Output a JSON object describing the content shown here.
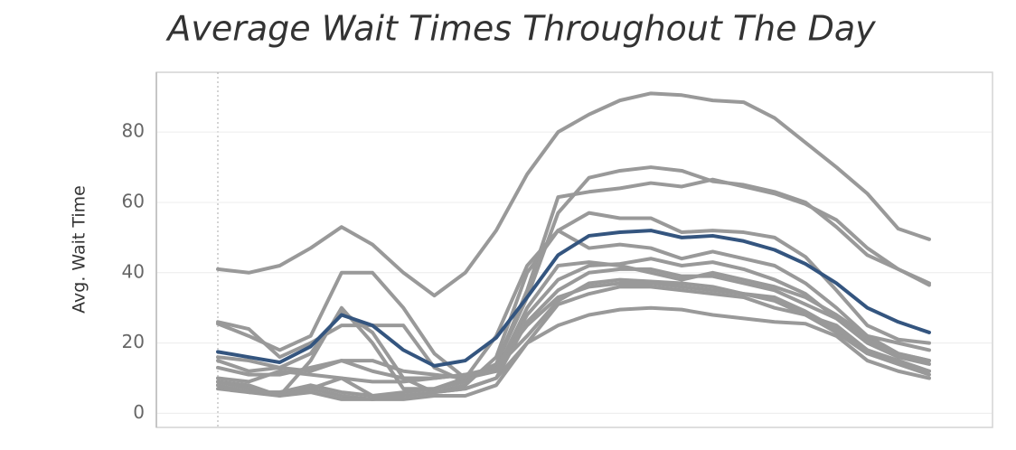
{
  "chart_data": {
    "type": "line",
    "title": "Average Wait Times Throughout The Day",
    "y_label": "Avg. Wait Time",
    "categories": [
      null,
      null,
      null,
      null,
      null,
      null,
      null,
      null,
      null,
      null,
      null,
      null,
      null,
      null,
      null,
      null,
      null,
      null,
      null,
      null,
      null,
      null,
      null,
      null
    ],
    "ylim": [
      -4,
      97
    ],
    "yticks": [
      0,
      20,
      40,
      60,
      80
    ],
    "grid": true,
    "series": [
      {
        "color": "#999999",
        "values": [
          41,
          40,
          42,
          47,
          53,
          48,
          40,
          33.5,
          40,
          52,
          68,
          80,
          85,
          89,
          91,
          90.5,
          89,
          88.5,
          84,
          77,
          70,
          62.5,
          52.5,
          49.5
        ]
      },
      {
        "color": "#999999",
        "values": [
          25.5,
          22,
          18,
          22,
          40,
          40,
          30,
          17,
          10,
          14,
          33,
          57,
          67,
          69,
          70,
          69,
          66,
          65,
          63,
          60,
          53,
          45,
          41,
          37
        ]
      },
      {
        "color": "#999999",
        "values": [
          26,
          24,
          16,
          20,
          25,
          25,
          25,
          13,
          9,
          14,
          35,
          61.5,
          63,
          64,
          65.5,
          64.5,
          66.5,
          64.5,
          62.5,
          59.5,
          55,
          47,
          41,
          36.5
        ]
      },
      {
        "color": "#999999",
        "values": [
          16,
          15,
          13,
          17,
          29,
          23,
          10,
          6,
          8,
          16,
          40,
          52,
          57,
          55.5,
          55.5,
          51.5,
          52,
          51.5,
          50,
          44.5,
          35,
          25,
          21,
          20
        ]
      },
      {
        "color": "#999999",
        "values": [
          9,
          8,
          5,
          15,
          30,
          20,
          7,
          7,
          10,
          22,
          42,
          52,
          47,
          48,
          47,
          44,
          46,
          44,
          42,
          37,
          30,
          22,
          17,
          15
        ]
      },
      {
        "color": "#999999",
        "values": [
          13,
          11,
          11,
          13,
          15,
          15,
          12,
          11,
          10,
          12,
          28,
          38,
          42,
          42.5,
          44,
          42,
          43,
          41,
          38,
          34,
          27,
          21,
          17,
          15
        ]
      },
      {
        "color": "#999999",
        "values": [
          8,
          6,
          6,
          7,
          5,
          4,
          5,
          6,
          7,
          10,
          26,
          35,
          40,
          41,
          41,
          39,
          39,
          37,
          35,
          31,
          27,
          20,
          16,
          14
        ]
      },
      {
        "color": "#999999",
        "values": [
          10,
          9,
          12,
          11,
          10,
          9,
          9,
          10,
          11,
          13,
          22,
          32,
          37,
          38,
          37.5,
          37,
          36,
          34,
          32,
          28,
          23,
          17,
          14,
          12
        ]
      },
      {
        "color": "#999999",
        "values": [
          7,
          6,
          5,
          6,
          4,
          4,
          4,
          5,
          5,
          8,
          20,
          31,
          34,
          36,
          36,
          35,
          34,
          33,
          30,
          28,
          25,
          18,
          14,
          11
        ]
      },
      {
        "color": "#999999",
        "values": [
          8,
          6,
          6,
          8,
          6,
          5,
          6,
          7,
          9,
          14,
          25,
          33,
          36,
          37,
          37,
          36,
          35,
          34,
          33,
          29,
          24,
          18,
          15,
          12
        ]
      },
      {
        "color": "#999999",
        "values": [
          9,
          7,
          5,
          7,
          10,
          5,
          5,
          6,
          7,
          10,
          20,
          25,
          28,
          29.5,
          30,
          29.5,
          28,
          27,
          26,
          25.5,
          22,
          15,
          12,
          10
        ]
      },
      {
        "color": "#999999",
        "values": [
          15,
          12,
          13,
          12,
          15,
          12,
          10,
          10,
          11,
          12,
          30,
          42,
          43,
          42,
          40,
          38,
          40,
          38,
          36,
          33,
          28,
          22,
          20,
          18
        ]
      },
      {
        "color": "#34557f",
        "values": [
          17.5,
          16,
          14.5,
          19,
          28,
          25,
          18,
          13.5,
          15,
          21.5,
          33,
          45,
          50.5,
          51.5,
          52,
          50,
          50.5,
          49,
          46.5,
          42.5,
          37,
          30,
          26,
          23
        ]
      }
    ]
  }
}
